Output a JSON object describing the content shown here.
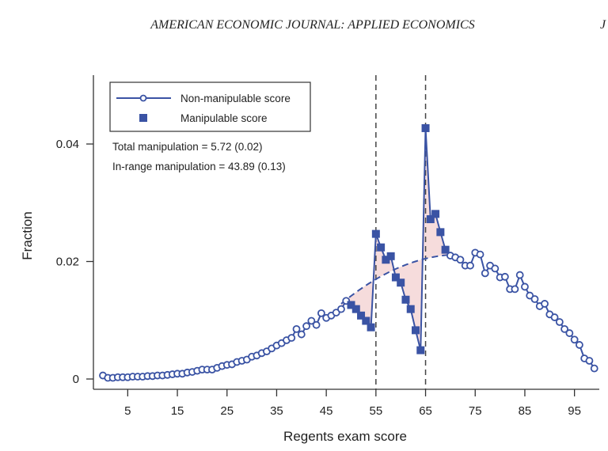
{
  "header": {
    "journal": "AMERICAN ECONOMIC JOURNAL: APPLIED ECONOMICS",
    "page_edge": "J"
  },
  "chart_data": {
    "type": "line",
    "title": "",
    "xlabel": "Regents exam score",
    "ylabel": "Fraction",
    "xlim": [
      0,
      100
    ],
    "ylim": [
      0,
      0.05
    ],
    "x_ticks": [
      "5",
      "15",
      "25",
      "35",
      "45",
      "55",
      "65",
      "75",
      "85",
      "95"
    ],
    "y_ticks": [
      "0",
      "0.02",
      "0.04"
    ],
    "x_tick_values": [
      5,
      15,
      25,
      35,
      45,
      55,
      65,
      75,
      85,
      95
    ],
    "y_tick_values": [
      0,
      0.02,
      0.04
    ],
    "vertical_dashed_lines": [
      55,
      65
    ],
    "legend": {
      "position": "top-left",
      "items": [
        "Non-manipulable score",
        "Manipulable score"
      ]
    },
    "annotations": [
      "Total manipulation = 5.72 (0.02)",
      "In-range manipulation = 43.89 (0.13)"
    ],
    "series": [
      {
        "name": "Non-manipulable score",
        "marker": "circle",
        "x": [
          0,
          1,
          2,
          3,
          4,
          5,
          6,
          7,
          8,
          9,
          10,
          11,
          12,
          13,
          14,
          15,
          16,
          17,
          18,
          19,
          20,
          21,
          22,
          23,
          24,
          25,
          26,
          27,
          28,
          29,
          30,
          31,
          32,
          33,
          34,
          35,
          36,
          37,
          38,
          39,
          40,
          41,
          42,
          43,
          44,
          45,
          46,
          47,
          48,
          49
        ],
        "y": [
          0.0006,
          0.0002,
          0.0002,
          0.0003,
          0.0003,
          0.0003,
          0.0004,
          0.0004,
          0.0004,
          0.0005,
          0.0005,
          0.0006,
          0.0006,
          0.0007,
          0.0008,
          0.0009,
          0.0009,
          0.0011,
          0.0012,
          0.0014,
          0.0016,
          0.0016,
          0.0016,
          0.0019,
          0.0022,
          0.0024,
          0.0025,
          0.0029,
          0.0031,
          0.0033,
          0.0038,
          0.004,
          0.0044,
          0.0047,
          0.0052,
          0.0057,
          0.0061,
          0.0066,
          0.007,
          0.0085,
          0.0076,
          0.009,
          0.0099,
          0.0092,
          0.0112,
          0.0104,
          0.0108,
          0.0113,
          0.0119,
          0.0133
        ]
      },
      {
        "name": "Manipulable score",
        "marker": "square",
        "x": [
          50,
          51,
          52,
          53,
          54,
          55,
          56,
          57,
          58,
          59,
          60,
          61,
          62,
          63,
          64,
          65,
          66,
          67,
          68,
          69
        ],
        "y": [
          0.0126,
          0.0119,
          0.0108,
          0.0099,
          0.0088,
          0.0247,
          0.0224,
          0.0203,
          0.0209,
          0.0173,
          0.0164,
          0.0135,
          0.0119,
          0.0083,
          0.0049,
          0.0427,
          0.0272,
          0.0281,
          0.025,
          0.022
        ]
      },
      {
        "name": "Non-manipulable score",
        "marker": "circle",
        "x": [
          70,
          71,
          72,
          73,
          74,
          75,
          76,
          77,
          78,
          79,
          80,
          81,
          82,
          83,
          84,
          85,
          86,
          87,
          88,
          89,
          90,
          91,
          92,
          93,
          94,
          95,
          96,
          97,
          98,
          99
        ],
        "y": [
          0.021,
          0.0207,
          0.0203,
          0.0193,
          0.0193,
          0.0215,
          0.0212,
          0.018,
          0.0193,
          0.0188,
          0.0173,
          0.0174,
          0.0153,
          0.0153,
          0.0177,
          0.0157,
          0.0142,
          0.0136,
          0.0124,
          0.0128,
          0.011,
          0.0105,
          0.0097,
          0.0085,
          0.0078,
          0.0067,
          0.0058,
          0.0035,
          0.0031,
          0.0018
        ]
      }
    ],
    "counterfactual": {
      "style": "dashed",
      "x_range": [
        48,
        70
      ],
      "peak_x": 72,
      "peak_y": 0.0212,
      "shaded_area_color": "#f6dcdc"
    },
    "colors": {
      "series": "#3a53a4",
      "dashed": "#3a53a4",
      "vlines": "#444444",
      "shade": "#f6dcdc"
    }
  }
}
